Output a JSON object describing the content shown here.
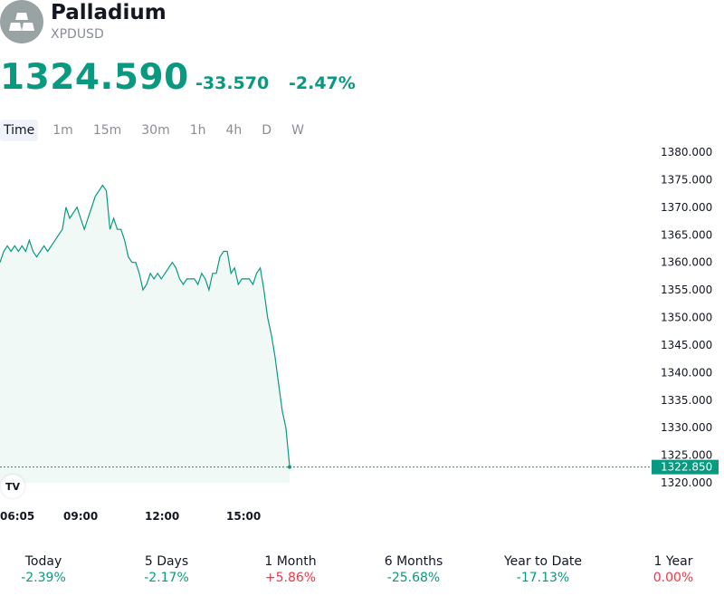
{
  "header": {
    "title": "Palladium",
    "symbol": "XPDUSD",
    "logo_icon": "gold-bars-icon"
  },
  "quote": {
    "price": "1324.590",
    "change": "-33.570",
    "change_percent": "-2.47%",
    "color": "#089981"
  },
  "tabs": [
    "Time",
    "1m",
    "15m",
    "30m",
    "1h",
    "4h",
    "D",
    "W"
  ],
  "chart_data": {
    "type": "area",
    "y_ticks": [
      "1380.000",
      "1375.000",
      "1370.000",
      "1365.000",
      "1360.000",
      "1355.000",
      "1350.000",
      "1345.000",
      "1340.000",
      "1335.000",
      "1330.000",
      "1325.000",
      "1320.000"
    ],
    "x_ticks": [
      "06:05",
      "09:00",
      "12:00",
      "15:00"
    ],
    "last_value_label": "1322.850",
    "ylim": [
      1320,
      1380
    ],
    "series": [
      {
        "values": [
          1360,
          1362,
          1363,
          1362,
          1363,
          1362,
          1363,
          1362,
          1364,
          1362,
          1361,
          1362,
          1363,
          1362,
          1363,
          1364,
          1365,
          1366,
          1370,
          1368,
          1369,
          1370,
          1368,
          1366,
          1368,
          1370,
          1372,
          1373,
          1374,
          1373,
          1366,
          1368,
          1366,
          1366,
          1364,
          1361,
          1360,
          1360,
          1358,
          1355,
          1356,
          1358,
          1357,
          1358,
          1357,
          1358,
          1359,
          1360,
          1359,
          1357,
          1356,
          1357,
          1357,
          1357,
          1356,
          1358,
          1357,
          1355,
          1358,
          1358,
          1361,
          1362,
          1362,
          1358,
          1359,
          1356,
          1357,
          1357,
          1357,
          1356,
          1358,
          1359,
          1355,
          1350,
          1347,
          1343,
          1338,
          1333,
          1330,
          1323
        ]
      }
    ],
    "line_color": "#089981",
    "fill_color": "#e8f5f2"
  },
  "performance": [
    {
      "label": "Today",
      "value": "-2.39%",
      "color": "#089981"
    },
    {
      "label": "5 Days",
      "value": "-2.17%",
      "color": "#089981"
    },
    {
      "label": "1 Month",
      "value": "+5.86%",
      "color": "#f23645"
    },
    {
      "label": "6 Months",
      "value": "-25.68%",
      "color": "#089981"
    },
    {
      "label": "Year to Date",
      "value": "-17.13%",
      "color": "#089981"
    },
    {
      "label": "1 Year",
      "value": "0.00%",
      "color": "#f23645"
    }
  ],
  "tv_logo_text": "TV"
}
